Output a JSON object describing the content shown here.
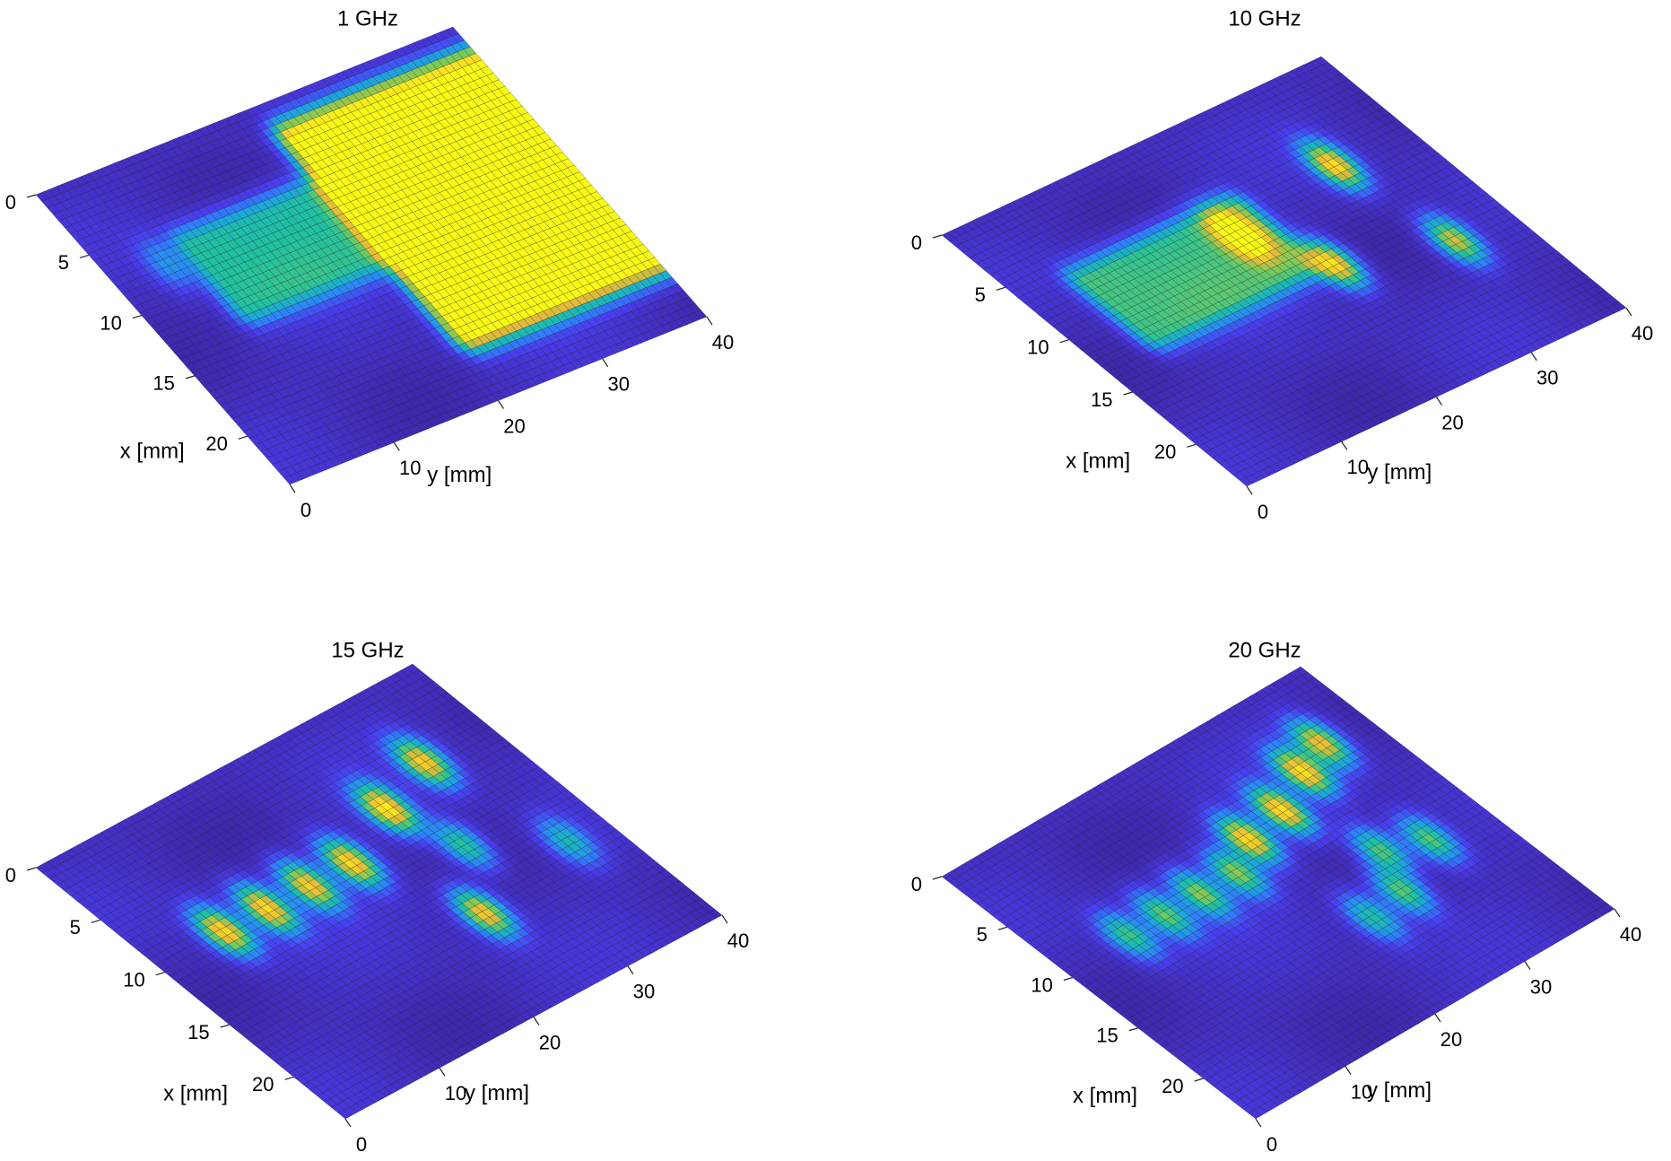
{
  "figure": {
    "background": "#ffffff",
    "colormap": [
      "#3e26a8",
      "#4a3ef1",
      "#2f7ffe",
      "#1ca8da",
      "#1fc1a1",
      "#7bcb59",
      "#e0b93b",
      "#f9d526",
      "#f9fb15"
    ]
  },
  "chart_data": [
    {
      "type": "surface",
      "title": "1 GHz",
      "xlabel": "x [mm]",
      "ylabel": "y [mm]",
      "xlim": [
        0,
        24
      ],
      "ylim": [
        0,
        40
      ],
      "xticks": [
        "0",
        "5",
        "10",
        "15",
        "20"
      ],
      "yticks": [
        "0",
        "10",
        "20",
        "30",
        "40"
      ],
      "features": [
        {
          "kind": "rect",
          "x": [
            3,
            19
          ],
          "y": [
            22,
            40
          ],
          "value": 1.0
        },
        {
          "kind": "rect",
          "x": [
            7,
            12
          ],
          "y": [
            8,
            24
          ],
          "value": 0.45
        },
        {
          "kind": "spot",
          "x": 7.5,
          "y": 5,
          "value": 0.25
        }
      ]
    },
    {
      "type": "surface",
      "title": "10 GHz",
      "xlabel": "x [mm]",
      "ylabel": "y [mm]",
      "xlim": [
        0,
        24
      ],
      "ylim": [
        0,
        40
      ],
      "xticks": [
        "0",
        "5",
        "10",
        "15",
        "20"
      ],
      "yticks": [
        "0",
        "10",
        "20",
        "30",
        "40"
      ],
      "features": [
        {
          "kind": "rect",
          "x": [
            7,
            12
          ],
          "y": [
            6,
            22
          ],
          "value": 0.5
        },
        {
          "kind": "spot",
          "x": 8.5,
          "y": 20,
          "value": 0.9
        },
        {
          "kind": "spot",
          "x": 7,
          "y": 32,
          "value": 0.85
        },
        {
          "kind": "spot",
          "x": 15,
          "y": 34,
          "value": 0.7
        },
        {
          "kind": "spot",
          "x": 13,
          "y": 24,
          "value": 0.85
        }
      ]
    },
    {
      "type": "surface",
      "title": "15 GHz",
      "xlabel": "x [mm]",
      "ylabel": "y [mm]",
      "xlim": [
        0,
        24
      ],
      "ylim": [
        0,
        40
      ],
      "xticks": [
        "0",
        "5",
        "10",
        "15",
        "20"
      ],
      "yticks": [
        "0",
        "10",
        "20",
        "30",
        "40"
      ],
      "features": [
        {
          "kind": "spot",
          "x": 9.5,
          "y": 7,
          "value": 0.85
        },
        {
          "kind": "spot",
          "x": 9.5,
          "y": 11.5,
          "value": 0.85
        },
        {
          "kind": "spot",
          "x": 9.5,
          "y": 16,
          "value": 0.8
        },
        {
          "kind": "spot",
          "x": 9.5,
          "y": 20.5,
          "value": 0.85
        },
        {
          "kind": "spot",
          "x": 7.5,
          "y": 27,
          "value": 0.9
        },
        {
          "kind": "spot",
          "x": 6,
          "y": 33,
          "value": 0.8
        },
        {
          "kind": "spot",
          "x": 12,
          "y": 29,
          "value": 0.5
        },
        {
          "kind": "spot",
          "x": 15,
          "y": 36,
          "value": 0.4
        },
        {
          "kind": "spot",
          "x": 16.5,
          "y": 25,
          "value": 0.8
        }
      ]
    },
    {
      "type": "surface",
      "title": "20 GHz",
      "xlabel": "x [mm]",
      "ylabel": "y [mm]",
      "xlim": [
        0,
        24
      ],
      "ylim": [
        0,
        40
      ],
      "xticks": [
        "0",
        "5",
        "10",
        "15",
        "20"
      ],
      "yticks": [
        "0",
        "10",
        "20",
        "30",
        "40"
      ],
      "features": [
        {
          "kind": "spot",
          "x": 9.5,
          "y": 7,
          "value": 0.5
        },
        {
          "kind": "spot",
          "x": 9.5,
          "y": 11,
          "value": 0.55
        },
        {
          "kind": "spot",
          "x": 9.5,
          "y": 15,
          "value": 0.6
        },
        {
          "kind": "spot",
          "x": 9.5,
          "y": 19,
          "value": 0.6
        },
        {
          "kind": "spot",
          "x": 8,
          "y": 22.5,
          "value": 0.85
        },
        {
          "kind": "spot",
          "x": 7.5,
          "y": 27,
          "value": 0.85
        },
        {
          "kind": "spot",
          "x": 6,
          "y": 31.5,
          "value": 0.85
        },
        {
          "kind": "spot",
          "x": 5,
          "y": 35,
          "value": 0.75
        },
        {
          "kind": "spot",
          "x": 13,
          "y": 30,
          "value": 0.55
        },
        {
          "kind": "spot",
          "x": 14,
          "y": 34,
          "value": 0.55
        },
        {
          "kind": "spot",
          "x": 16,
          "y": 28,
          "value": 0.55
        },
        {
          "kind": "spot",
          "x": 16.5,
          "y": 24,
          "value": 0.45
        }
      ]
    }
  ]
}
